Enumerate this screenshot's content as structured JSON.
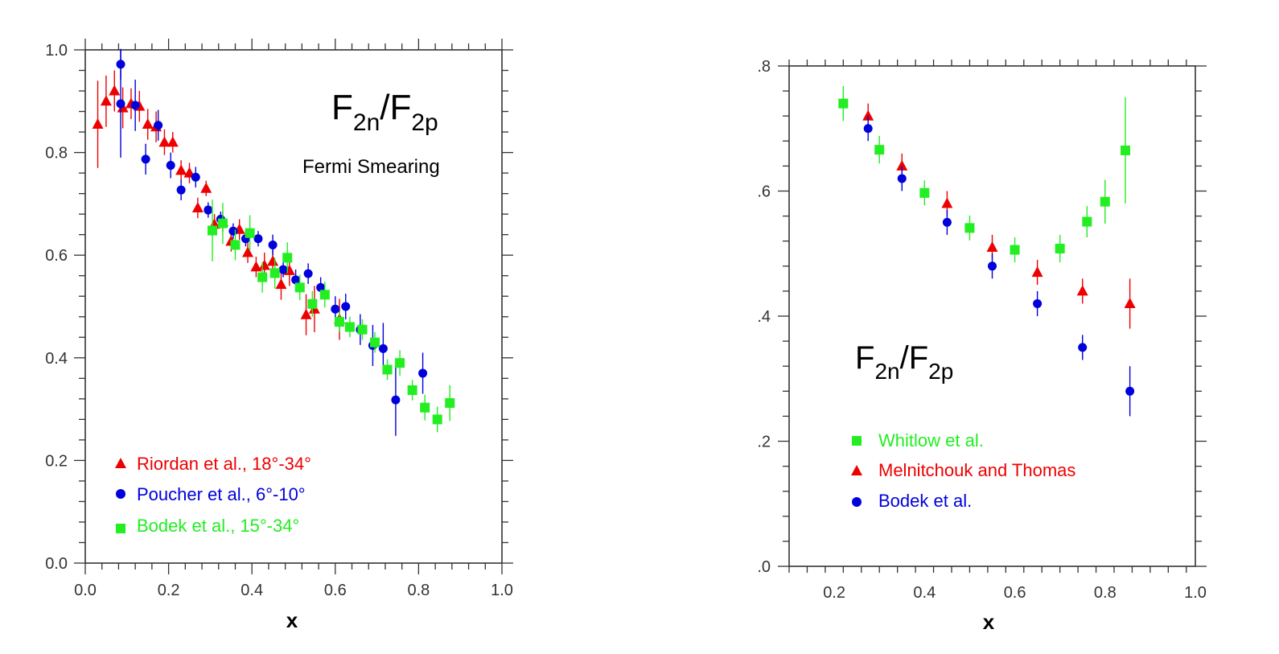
{
  "chart_data": [
    {
      "type": "scatter",
      "title_main": "F",
      "title_sub1": "2n",
      "title_mid": "/F",
      "title_sub2": "2p",
      "subtitle": "Fermi Smearing",
      "xlabel": "x",
      "ylabel": "",
      "xlim": [
        0.0,
        1.0
      ],
      "ylim": [
        0.0,
        1.0
      ],
      "xticks": [
        "0.0",
        "0.2",
        "0.4",
        "0.6",
        "0.8",
        "1.0"
      ],
      "yticks": [
        "0.0",
        "0.2",
        "0.4",
        "0.6",
        "0.8",
        "1.0"
      ],
      "legend_position": "bottom-left",
      "series": [
        {
          "name": "Riordan et al., 18°-34°",
          "marker": "triangle",
          "color": "#ee0000",
          "points": [
            [
              0.03,
              0.855,
              0.085
            ],
            [
              0.05,
              0.9,
              0.05
            ],
            [
              0.07,
              0.92,
              0.04
            ],
            [
              0.09,
              0.887,
              0.04
            ],
            [
              0.11,
              0.895,
              0.03
            ],
            [
              0.13,
              0.89,
              0.03
            ],
            [
              0.15,
              0.855,
              0.03
            ],
            [
              0.17,
              0.85,
              0.03
            ],
            [
              0.19,
              0.82,
              0.025
            ],
            [
              0.21,
              0.82,
              0.02
            ],
            [
              0.23,
              0.765,
              0.02
            ],
            [
              0.25,
              0.76,
              0.02
            ],
            [
              0.27,
              0.692,
              0.02
            ],
            [
              0.29,
              0.73,
              0.015
            ],
            [
              0.31,
              0.66,
              0.02
            ],
            [
              0.33,
              0.665,
              0.02
            ],
            [
              0.35,
              0.627,
              0.02
            ],
            [
              0.37,
              0.65,
              0.02
            ],
            [
              0.39,
              0.605,
              0.02
            ],
            [
              0.41,
              0.577,
              0.02
            ],
            [
              0.43,
              0.58,
              0.025
            ],
            [
              0.45,
              0.588,
              0.025
            ],
            [
              0.47,
              0.543,
              0.03
            ],
            [
              0.49,
              0.57,
              0.03
            ],
            [
              0.53,
              0.484,
              0.04
            ],
            [
              0.55,
              0.495,
              0.045
            ],
            [
              0.61,
              0.475,
              0.04
            ]
          ]
        },
        {
          "name": "Poucher et al., 6°-10°",
          "marker": "circle",
          "color": "#0000dd",
          "points": [
            [
              0.085,
              0.972,
              0.03
            ],
            [
              0.085,
              0.895,
              0.105
            ],
            [
              0.12,
              0.892,
              0.05
            ],
            [
              0.145,
              0.787,
              0.03
            ],
            [
              0.175,
              0.853,
              0.03
            ],
            [
              0.205,
              0.775,
              0.025
            ],
            [
              0.23,
              0.727,
              0.02
            ],
            [
              0.265,
              0.752,
              0.02
            ],
            [
              0.295,
              0.688,
              0.015
            ],
            [
              0.325,
              0.67,
              0.015
            ],
            [
              0.355,
              0.647,
              0.015
            ],
            [
              0.385,
              0.632,
              0.015
            ],
            [
              0.415,
              0.632,
              0.015
            ],
            [
              0.45,
              0.62,
              0.02
            ],
            [
              0.475,
              0.572,
              0.015
            ],
            [
              0.505,
              0.552,
              0.02
            ],
            [
              0.535,
              0.564,
              0.02
            ],
            [
              0.565,
              0.537,
              0.02
            ],
            [
              0.6,
              0.495,
              0.025
            ],
            [
              0.625,
              0.5,
              0.025
            ],
            [
              0.66,
              0.455,
              0.03
            ],
            [
              0.69,
              0.424,
              0.04
            ],
            [
              0.715,
              0.418,
              0.05
            ],
            [
              0.745,
              0.318,
              0.07
            ],
            [
              0.81,
              0.37,
              0.04
            ]
          ]
        },
        {
          "name": "Bodek et al., 15°-34°",
          "marker": "square",
          "color": "#22ee22",
          "points": [
            [
              0.305,
              0.648,
              0.06
            ],
            [
              0.33,
              0.662,
              0.04
            ],
            [
              0.36,
              0.62,
              0.03
            ],
            [
              0.395,
              0.643,
              0.035
            ],
            [
              0.425,
              0.557,
              0.03
            ],
            [
              0.455,
              0.565,
              0.03
            ],
            [
              0.485,
              0.595,
              0.03
            ],
            [
              0.515,
              0.537,
              0.025
            ],
            [
              0.545,
              0.505,
              0.025
            ],
            [
              0.575,
              0.523,
              0.025
            ],
            [
              0.61,
              0.47,
              0.02
            ],
            [
              0.635,
              0.46,
              0.02
            ],
            [
              0.665,
              0.455,
              0.02
            ],
            [
              0.695,
              0.43,
              0.02
            ],
            [
              0.725,
              0.377,
              0.02
            ],
            [
              0.755,
              0.39,
              0.025
            ],
            [
              0.785,
              0.337,
              0.02
            ],
            [
              0.815,
              0.303,
              0.025
            ],
            [
              0.845,
              0.28,
              0.025
            ],
            [
              0.875,
              0.312,
              0.035
            ]
          ]
        }
      ]
    },
    {
      "type": "scatter",
      "title_main": "F",
      "title_sub1": "2n",
      "title_mid": "/F",
      "title_sub2": "2p",
      "xlabel": "x",
      "ylabel": "",
      "xlim": [
        0.1,
        1.0
      ],
      "ylim": [
        0.0,
        0.8
      ],
      "xticks": [
        "0.2",
        "0.4",
        "0.6",
        "0.8",
        "1.0"
      ],
      "yticks": [
        ".0",
        ".2",
        ".4",
        ".6",
        ".8"
      ],
      "legend_position": "bottom-left",
      "series": [
        {
          "name": "Whitlow et al.",
          "marker": "square",
          "color": "#22ee22",
          "points": [
            [
              0.22,
              0.74,
              0.028
            ],
            [
              0.3,
              0.666,
              0.022
            ],
            [
              0.4,
              0.597,
              0.02
            ],
            [
              0.5,
              0.541,
              0.02
            ],
            [
              0.6,
              0.506,
              0.02
            ],
            [
              0.7,
              0.508,
              0.022
            ],
            [
              0.76,
              0.551,
              0.025
            ],
            [
              0.8,
              0.583,
              0.035
            ],
            [
              0.845,
              0.665,
              0.085
            ]
          ]
        },
        {
          "name": "Melnitchouk and Thomas",
          "marker": "triangle",
          "color": "#ee0000",
          "points": [
            [
              0.275,
              0.72,
              0.02
            ],
            [
              0.35,
              0.64,
              0.02
            ],
            [
              0.45,
              0.58,
              0.02
            ],
            [
              0.55,
              0.51,
              0.02
            ],
            [
              0.65,
              0.47,
              0.02
            ],
            [
              0.75,
              0.44,
              0.02
            ],
            [
              0.855,
              0.42,
              0.04
            ]
          ]
        },
        {
          "name": "Bodek et al.",
          "marker": "circle",
          "color": "#0000dd",
          "points": [
            [
              0.275,
              0.7,
              0.02
            ],
            [
              0.35,
              0.62,
              0.02
            ],
            [
              0.45,
              0.55,
              0.02
            ],
            [
              0.55,
              0.48,
              0.02
            ],
            [
              0.65,
              0.42,
              0.02
            ],
            [
              0.75,
              0.35,
              0.02
            ],
            [
              0.855,
              0.28,
              0.04
            ]
          ]
        }
      ]
    }
  ]
}
